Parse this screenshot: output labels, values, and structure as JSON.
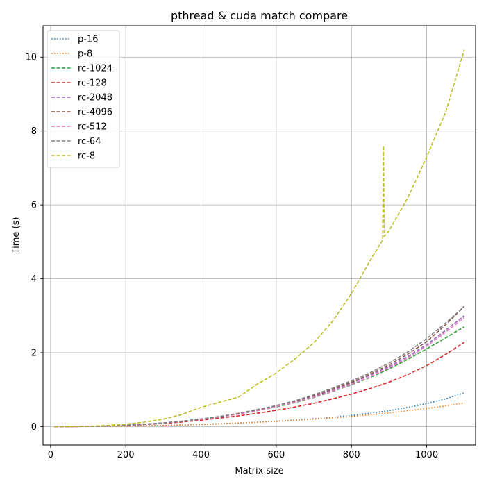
{
  "chart_data": {
    "type": "line",
    "title": "pthread & cuda match compare",
    "xlabel": "Matrix size",
    "ylabel": "Time (s)",
    "xlim": [
      -20,
      1130
    ],
    "ylim": [
      -0.5,
      10.85
    ],
    "xticks": [
      0,
      200,
      400,
      600,
      800,
      1000
    ],
    "yticks": [
      0,
      2,
      4,
      6,
      8,
      10
    ],
    "grid": true,
    "legend_position": "top-left",
    "x": [
      10,
      50,
      100,
      150,
      200,
      250,
      300,
      350,
      400,
      450,
      500,
      550,
      600,
      650,
      700,
      750,
      800,
      850,
      900,
      950,
      1000,
      1050,
      1100
    ],
    "series": [
      {
        "name": "p-16",
        "style": "dotted",
        "color": "#1f77b4",
        "values": [
          0.0,
          0.0,
          0.003,
          0.007,
          0.012,
          0.02,
          0.03,
          0.043,
          0.058,
          0.076,
          0.096,
          0.12,
          0.145,
          0.175,
          0.21,
          0.25,
          0.3,
          0.36,
          0.43,
          0.52,
          0.62,
          0.75,
          0.91
        ]
      },
      {
        "name": "p-8",
        "style": "dotted",
        "color": "#ff7f0e",
        "values": [
          0.0,
          0.0,
          0.003,
          0.007,
          0.012,
          0.02,
          0.03,
          0.042,
          0.056,
          0.073,
          0.093,
          0.115,
          0.14,
          0.168,
          0.2,
          0.235,
          0.275,
          0.32,
          0.37,
          0.43,
          0.49,
          0.56,
          0.64
        ]
      },
      {
        "name": "rc-1024",
        "style": "dashed",
        "color": "#2ca02c",
        "values": [
          0.0,
          0.0,
          0.006,
          0.017,
          0.035,
          0.061,
          0.096,
          0.14,
          0.195,
          0.26,
          0.34,
          0.43,
          0.53,
          0.65,
          0.79,
          0.95,
          1.13,
          1.33,
          1.56,
          1.82,
          2.1,
          2.4,
          2.7
        ]
      },
      {
        "name": "rc-128",
        "style": "dashed",
        "color": "#d62728",
        "values": [
          0.0,
          0.0,
          0.005,
          0.015,
          0.031,
          0.054,
          0.085,
          0.124,
          0.173,
          0.23,
          0.29,
          0.36,
          0.44,
          0.53,
          0.63,
          0.75,
          0.88,
          1.03,
          1.2,
          1.41,
          1.65,
          1.95,
          2.28
        ]
      },
      {
        "name": "rc-2048",
        "style": "dashed",
        "color": "#9467bd",
        "values": [
          0.0,
          0.0,
          0.006,
          0.017,
          0.035,
          0.062,
          0.098,
          0.143,
          0.2,
          0.27,
          0.35,
          0.44,
          0.55,
          0.68,
          0.82,
          0.99,
          1.18,
          1.39,
          1.63,
          1.9,
          2.22,
          2.6,
          3.0
        ]
      },
      {
        "name": "rc-4096",
        "style": "dashed",
        "color": "#8c564b",
        "values": [
          0.0,
          0.0,
          0.006,
          0.017,
          0.036,
          0.063,
          0.1,
          0.146,
          0.203,
          0.27,
          0.35,
          0.45,
          0.56,
          0.69,
          0.84,
          1.01,
          1.2,
          1.42,
          1.67,
          1.96,
          2.3,
          2.75,
          3.25
        ]
      },
      {
        "name": "rc-512",
        "style": "dashed",
        "color": "#e377c2",
        "values": [
          0.0,
          0.0,
          0.006,
          0.017,
          0.035,
          0.062,
          0.097,
          0.142,
          0.198,
          0.26,
          0.34,
          0.43,
          0.54,
          0.66,
          0.8,
          0.96,
          1.14,
          1.35,
          1.59,
          1.86,
          2.18,
          2.55,
          2.95
        ]
      },
      {
        "name": "rc-64",
        "style": "dashed",
        "color": "#7f7f7f",
        "values": [
          0.0,
          0.0,
          0.006,
          0.017,
          0.036,
          0.063,
          0.1,
          0.147,
          0.205,
          0.275,
          0.36,
          0.46,
          0.57,
          0.7,
          0.86,
          1.04,
          1.24,
          1.46,
          1.72,
          2.02,
          2.38,
          2.8,
          3.25
        ]
      },
      {
        "name": "rc-8",
        "style": "dashed",
        "color": "#bcbd22",
        "values": [
          0.0,
          0.0,
          0.01,
          0.03,
          0.065,
          0.12,
          0.2,
          0.33,
          0.52,
          0.66,
          0.8,
          1.15,
          1.45,
          1.83,
          2.27,
          2.85,
          3.6,
          4.5,
          5.3,
          6.2,
          7.3,
          8.5,
          10.2
        ]
      }
    ],
    "annotations": [
      {
        "series": "rc-8",
        "note": "spike",
        "x": 885,
        "y": 7.6
      }
    ]
  }
}
